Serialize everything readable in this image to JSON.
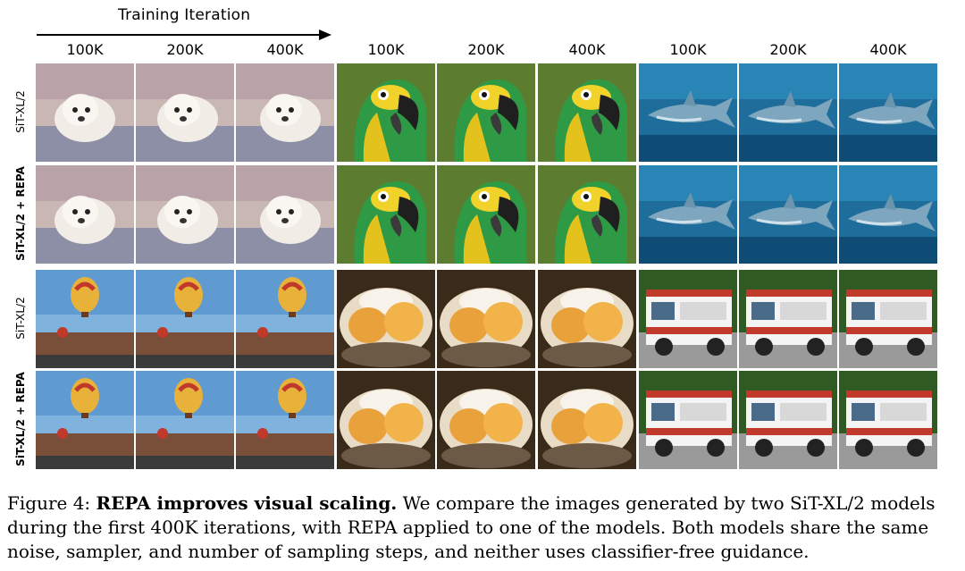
{
  "figure": {
    "axis_title": "Training Iteration",
    "columns": [
      "100K",
      "200K",
      "400K",
      "100K",
      "200K",
      "400K",
      "100K",
      "200K",
      "400K"
    ],
    "rows": [
      {
        "label": "SiT-XL/2",
        "bold": false
      },
      {
        "label": "SiT-XL/2 + REPA",
        "bold": true
      },
      {
        "label": "SiT-XL/2",
        "bold": false
      },
      {
        "label": "SiT-XL/2 + REPA",
        "bold": true
      }
    ],
    "subjects": [
      "dog",
      "parrot",
      "shark",
      "balloon",
      "food",
      "firetruck"
    ]
  },
  "caption": {
    "prefix": "Figure 4: ",
    "lead": "REPA improves visual scaling.",
    "body": " We compare the images generated by two SiT-XL/2 models during the first 400K iterations, with REPA applied to one of the models. Both models share the same noise, sampler, and number of sampling steps, and neither uses classifier-free guidance."
  },
  "colors": {
    "dog_bg": "#c9b7b4",
    "parrot_bg": "#4c6a2a",
    "shark_bg": "#1f6d9b",
    "sky": "#7fb3dd",
    "food_bg": "#3a2a1a",
    "truck_bg": "#2f5a22"
  }
}
